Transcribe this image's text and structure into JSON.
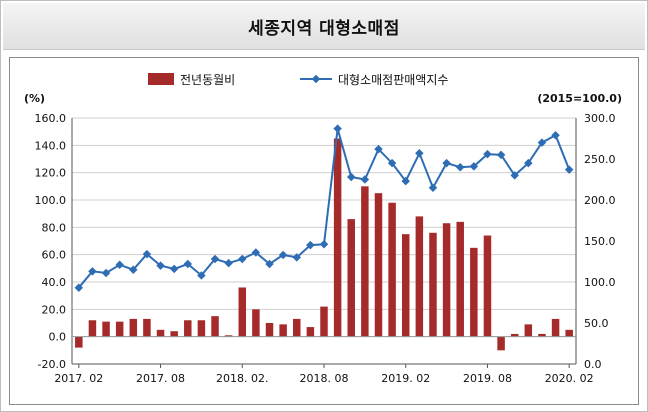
{
  "title": "세종지역 대형소매점",
  "chart_data": {
    "type": "bar+line",
    "title": "세종지역 대형소매점",
    "y_left_unit": "(%)",
    "y_right_unit": "(2015=100.0)",
    "y_left_range": [
      -20,
      160
    ],
    "y_left_ticks": [
      "-20.0",
      "0.0",
      "20.0",
      "40.0",
      "60.0",
      "80.0",
      "100.0",
      "120.0",
      "140.0",
      "160.0"
    ],
    "y_right_range": [
      0,
      300
    ],
    "y_right_ticks": [
      "0.0",
      "50.0",
      "100.0",
      "150.0",
      "200.0",
      "250.0",
      "300.0"
    ],
    "x_tick_labels": [
      "2017. 02",
      "2017. 08",
      "2018. 02.",
      "2018. 08",
      "2019. 02",
      "2019. 08",
      "2020. 02"
    ],
    "legend_position": "top",
    "grid": "horizontal",
    "series": [
      {
        "name": "전년동월비",
        "type": "bar",
        "axis": "left",
        "color": "#a52a2a",
        "values": [
          -8,
          12,
          11,
          11,
          13,
          13,
          5,
          4,
          12,
          12,
          15,
          1,
          36,
          20,
          10,
          9,
          13,
          7,
          22,
          145,
          86,
          110,
          105,
          98,
          75,
          88,
          76,
          83,
          84,
          65,
          74,
          -10,
          2,
          9,
          2,
          13,
          5
        ]
      },
      {
        "name": "대형소매점판매액지수",
        "type": "line",
        "axis": "right",
        "color": "#2e6db4",
        "values": [
          93,
          113,
          111,
          121,
          115,
          134,
          120,
          116,
          122,
          108,
          128,
          123,
          128,
          136,
          122,
          133,
          130,
          145,
          146,
          287,
          228,
          225,
          262,
          245,
          223,
          257,
          215,
          245,
          240,
          241,
          256,
          255,
          230,
          245,
          270,
          279,
          237
        ]
      }
    ]
  }
}
